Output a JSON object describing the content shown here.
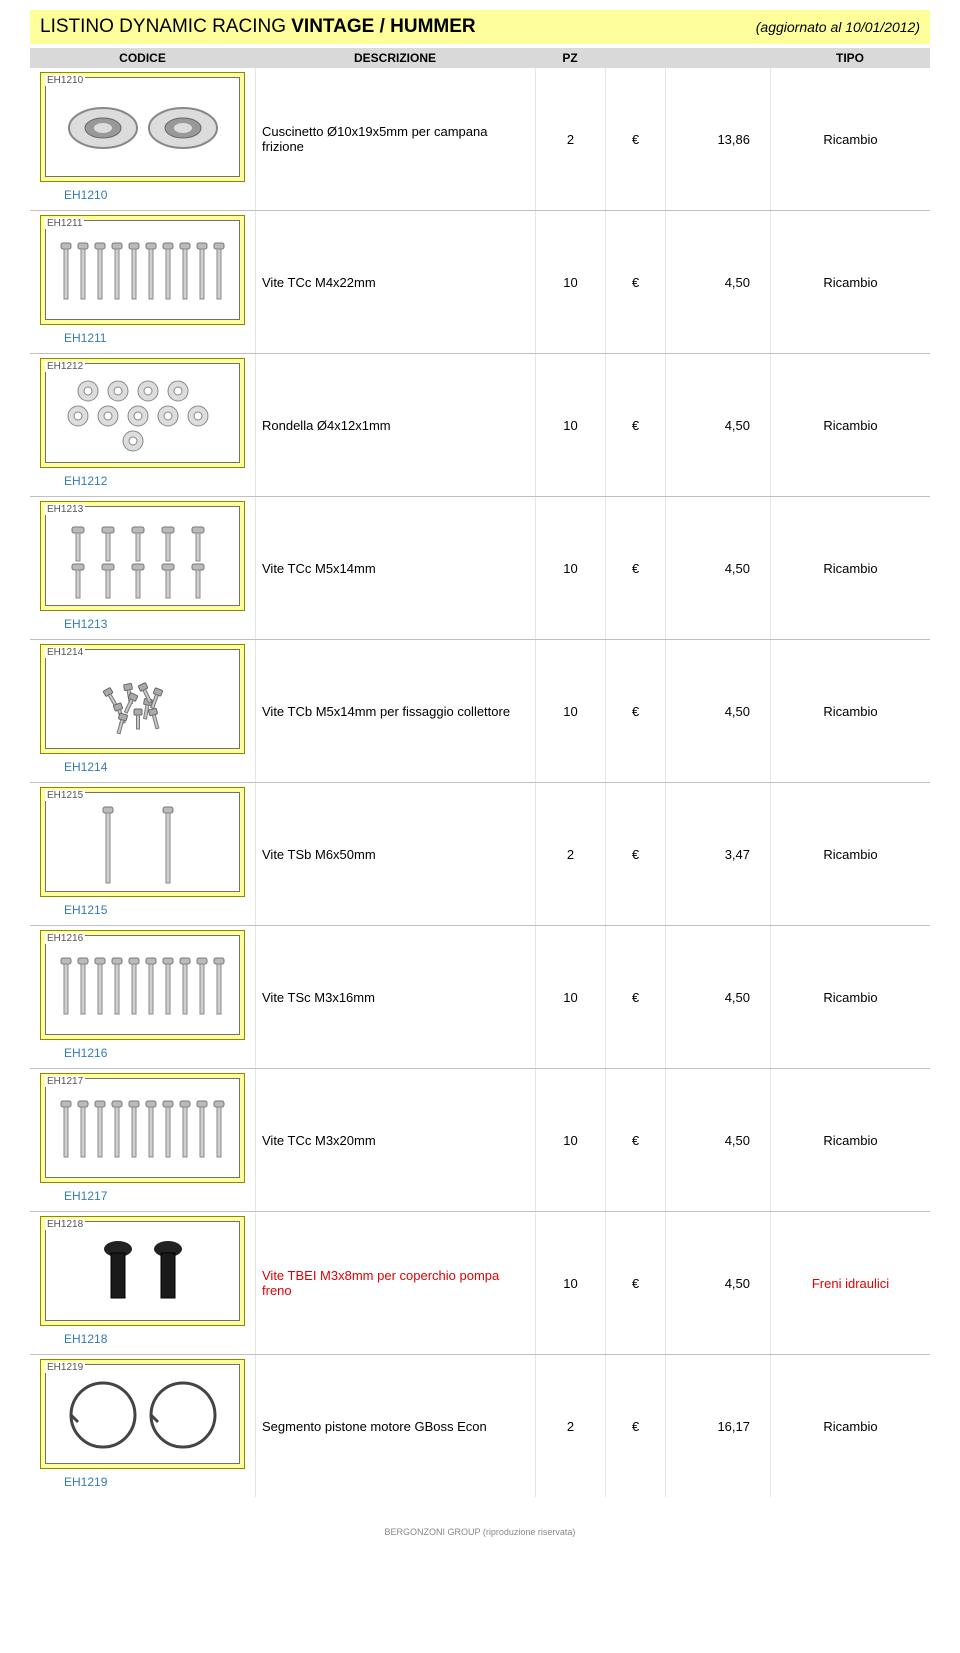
{
  "header": {
    "title_prefix": "LISTINO DYNAMIC RACING ",
    "title_bold": "VINTAGE / HUMMER",
    "updated": "(aggiornato al 10/01/2012)"
  },
  "columns": {
    "codice": "CODICE",
    "descrizione": "DESCRIZIONE",
    "pz": "PZ",
    "tipo": "TIPO"
  },
  "colors": {
    "header_bg": "#feff9b",
    "imgbox_bg": "#feff9b",
    "colhead_bg": "#d9d9d9",
    "red": "#e00000",
    "link": "#337ab7"
  },
  "rows": [
    {
      "code": "EH1210",
      "desc": "Cuscinetto Ø10x19x5mm per campana frizione",
      "pz": "2",
      "cur": "€",
      "price": "13,86",
      "tipo": "Ricambio",
      "red": false,
      "icon": "bearing"
    },
    {
      "code": "EH1211",
      "desc": "Vite TCc M4x22mm",
      "pz": "10",
      "cur": "€",
      "price": "4,50",
      "tipo": "Ricambio",
      "red": false,
      "icon": "screws_row"
    },
    {
      "code": "EH1212",
      "desc": "Rondella Ø4x12x1mm",
      "pz": "10",
      "cur": "€",
      "price": "4,50",
      "tipo": "Ricambio",
      "red": false,
      "icon": "washers"
    },
    {
      "code": "EH1213",
      "desc": "Vite TCc M5x14mm",
      "pz": "10",
      "cur": "€",
      "price": "4,50",
      "tipo": "Ricambio",
      "red": false,
      "icon": "screws_short"
    },
    {
      "code": "EH1214",
      "desc": "Vite TCb M5x14mm per fissaggio collettore",
      "pz": "10",
      "cur": "€",
      "price": "4,50",
      "tipo": "Ricambio",
      "red": false,
      "icon": "bolts_pile"
    },
    {
      "code": "EH1215",
      "desc": "Vite TSb M6x50mm",
      "pz": "2",
      "cur": "€",
      "price": "3,47",
      "tipo": "Ricambio",
      "red": false,
      "icon": "screws_two_long"
    },
    {
      "code": "EH1216",
      "desc": "Vite TSc M3x16mm",
      "pz": "10",
      "cur": "€",
      "price": "4,50",
      "tipo": "Ricambio",
      "red": false,
      "icon": "screws_row"
    },
    {
      "code": "EH1217",
      "desc": "Vite TCc M3x20mm",
      "pz": "10",
      "cur": "€",
      "price": "4,50",
      "tipo": "Ricambio",
      "red": false,
      "icon": "screws_row"
    },
    {
      "code": "EH1218",
      "desc": "Vite TBEI M3x8mm per coperchio pompa freno",
      "pz": "10",
      "cur": "€",
      "price": "4,50",
      "tipo": "Freni idraulici",
      "red": true,
      "icon": "black_bolts"
    },
    {
      "code": "EH1219",
      "desc": "Segmento pistone motore GBoss Econ",
      "pz": "2",
      "cur": "€",
      "price": "16,17",
      "tipo": "Ricambio",
      "red": false,
      "icon": "rings"
    }
  ],
  "footer": "BERGONZONI GROUP (riproduzione riservata)"
}
